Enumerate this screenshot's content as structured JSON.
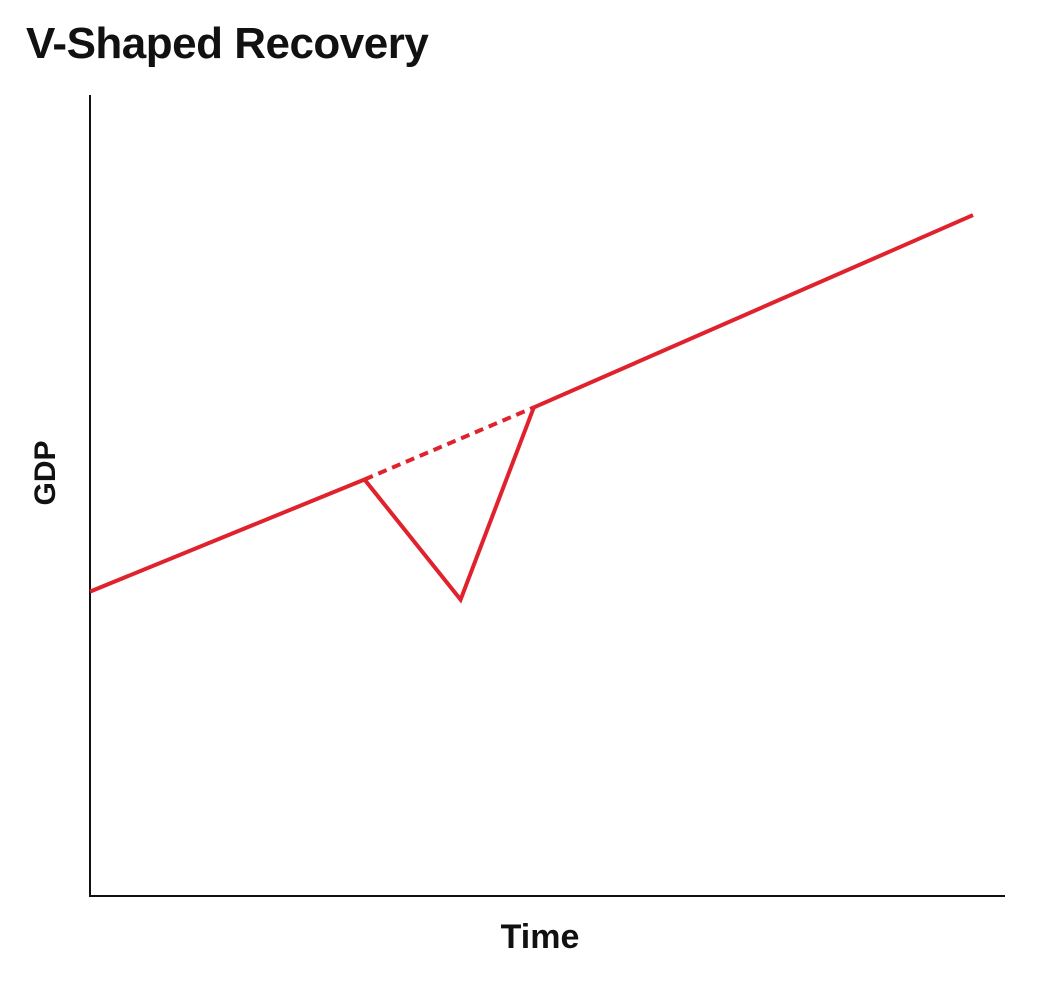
{
  "chart_data": {
    "type": "line",
    "title": "V-Shaped Recovery",
    "xlabel": "Time",
    "ylabel": "GDP",
    "xlim": [
      0,
      100
    ],
    "ylim": [
      0,
      100
    ],
    "grid": false,
    "legend": "none",
    "series": [
      {
        "style": "solid",
        "color": "#e0222d",
        "x": [
          0,
          30
        ],
        "y": [
          38,
          52
        ]
      },
      {
        "style": "dashed",
        "color": "#e0222d",
        "x": [
          30,
          48.5
        ],
        "y": [
          52,
          61
        ]
      },
      {
        "style": "solid",
        "color": "#e0222d",
        "x": [
          30,
          40.5,
          48.5
        ],
        "y": [
          52,
          37,
          61
        ]
      },
      {
        "style": "solid",
        "color": "#e0222d",
        "x": [
          48.5,
          96.5
        ],
        "y": [
          61,
          85
        ]
      }
    ]
  }
}
